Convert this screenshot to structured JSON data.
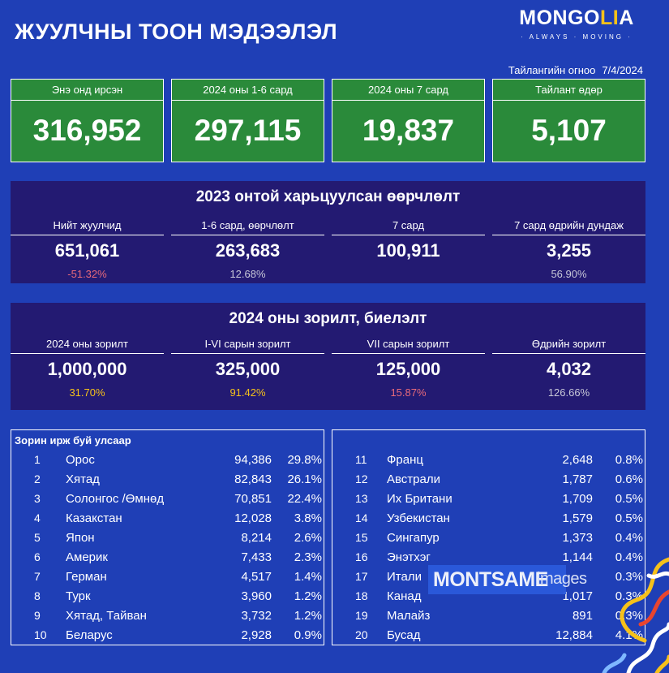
{
  "header": {
    "title": "ЖУУЛЧНЫ ТООН МЭДЭЭЛЭЛ",
    "logo_part1": "MONGO",
    "logo_part2": "LI",
    "logo_part3": "A",
    "logo_tagline": "· ALWAYS · MOVING ·",
    "report_date_label": "Тайлангийн огноо",
    "report_date_value": "7/4/2024"
  },
  "summary_cards": [
    {
      "label": "Энэ онд ирсэн",
      "value": "316,952"
    },
    {
      "label": "2024 оны 1-6 сард",
      "value": "297,115"
    },
    {
      "label": "2024 оны 7 сард",
      "value": "19,837"
    },
    {
      "label": "Тайлант өдөр",
      "value": "5,107"
    }
  ],
  "comparison": {
    "title": "2023 онтой харьцуулсан өөрчлөлт",
    "columns": [
      {
        "label": "Нийт жуулчид",
        "value": "651,061",
        "pct": "-51.32%"
      },
      {
        "label": "1-6 сард, өөрчлөлт",
        "value": "263,683",
        "pct": "12.68%"
      },
      {
        "label": "7 сард",
        "value": "100,911",
        "pct": ""
      },
      {
        "label": "7 сард өдрийн дундаж",
        "value": "3,255",
        "pct": "56.90%"
      }
    ]
  },
  "goals": {
    "title": "2024 оны зорилт, биелэлт",
    "columns": [
      {
        "label": "2024 оны зорилт",
        "value": "1,000,000",
        "pct": "31.70%"
      },
      {
        "label": "I-VI сарын зорилт",
        "value": "325,000",
        "pct": "91.42%"
      },
      {
        "label": "VII сарын зорилт",
        "value": "125,000",
        "pct": "15.87%"
      },
      {
        "label": "Өдрийн зорилт",
        "value": "4,032",
        "pct": "126.66%"
      }
    ]
  },
  "countries": {
    "title": "Зорин ирж буй улсаар",
    "rows": [
      {
        "rank": "1",
        "name": "Орос",
        "count": "94,386",
        "pct": "29.8%"
      },
      {
        "rank": "2",
        "name": "Хятад",
        "count": "82,843",
        "pct": "26.1%"
      },
      {
        "rank": "3",
        "name": "Солонгос /Өмнөд",
        "count": "70,851",
        "pct": "22.4%"
      },
      {
        "rank": "4",
        "name": "Казакстан",
        "count": "12,028",
        "pct": "3.8%"
      },
      {
        "rank": "5",
        "name": "Япон",
        "count": "8,214",
        "pct": "2.6%"
      },
      {
        "rank": "6",
        "name": "Америк",
        "count": "7,433",
        "pct": "2.3%"
      },
      {
        "rank": "7",
        "name": "Герман",
        "count": "4,517",
        "pct": "1.4%"
      },
      {
        "rank": "8",
        "name": "Турк",
        "count": "3,960",
        "pct": "1.2%"
      },
      {
        "rank": "9",
        "name": "Хятад, Тайван",
        "count": "3,732",
        "pct": "1.2%"
      },
      {
        "rank": "10",
        "name": "Беларус",
        "count": "2,928",
        "pct": "0.9%"
      },
      {
        "rank": "11",
        "name": "Франц",
        "count": "2,648",
        "pct": "0.8%"
      },
      {
        "rank": "12",
        "name": "Австрали",
        "count": "1,787",
        "pct": "0.6%"
      },
      {
        "rank": "13",
        "name": "Их Британи",
        "count": "1,709",
        "pct": "0.5%"
      },
      {
        "rank": "14",
        "name": "Узбекистан",
        "count": "1,579",
        "pct": "0.5%"
      },
      {
        "rank": "15",
        "name": "Сингапур",
        "count": "1,373",
        "pct": "0.4%"
      },
      {
        "rank": "16",
        "name": "Энэтхэг",
        "count": "1,144",
        "pct": "0.4%"
      },
      {
        "rank": "17",
        "name": "Итали",
        "count": "",
        "pct": "0.3%"
      },
      {
        "rank": "18",
        "name": "Канад",
        "count": "1,017",
        "pct": "0.3%"
      },
      {
        "rank": "19",
        "name": "Малайз",
        "count": "891",
        "pct": "0.3%"
      },
      {
        "rank": "20",
        "name": "Бусад",
        "count": "12,884",
        "pct": "4.1%"
      }
    ]
  },
  "watermark": {
    "brand": "MONTSAME",
    "suffix": "images"
  },
  "colors": {
    "background": "#1f3fb6",
    "card_green": "#2a8a3a",
    "panel_navy": "#231a72",
    "negative_pink": "#e86a7a",
    "highlight_yellow": "#f6c11a",
    "muted_pct": "#c8c8d8"
  }
}
